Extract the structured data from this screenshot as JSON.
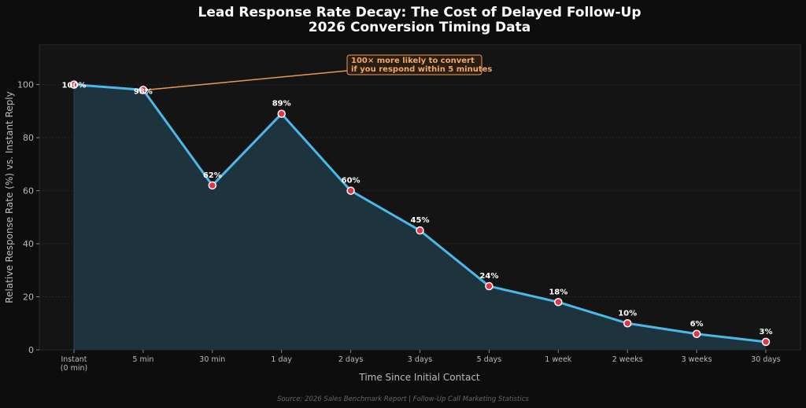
{
  "chart_data": {
    "type": "area",
    "title": "Lead Response Rate Decay: The Cost of Delayed Follow-Up",
    "subtitle": "2026 Conversion Timing Data",
    "xlabel": "Time Since Initial Contact",
    "ylabel": "Relative Response Rate (%) vs. Instant Reply",
    "categories": [
      [
        "Instant",
        "(0 min)"
      ],
      [
        "5 min"
      ],
      [
        "30 min"
      ],
      [
        "1 day"
      ],
      [
        "2 days"
      ],
      [
        "3 days"
      ],
      [
        "5 days"
      ],
      [
        "1 week"
      ],
      [
        "2 weeks"
      ],
      [
        "3 weeks"
      ],
      [
        "30 days"
      ]
    ],
    "values": [
      100,
      98,
      62,
      89,
      60,
      45,
      24,
      18,
      10,
      6,
      3
    ],
    "data_labels": [
      "100%",
      "98%",
      "62%",
      "89%",
      "60%",
      "45%",
      "24%",
      "18%",
      "10%",
      "6%",
      "3%"
    ],
    "ylim": [
      0,
      115
    ],
    "yticks": [
      0,
      20,
      40,
      60,
      80,
      100
    ],
    "grid": true,
    "annotation": {
      "lines": [
        "100× more likely to convert",
        "if you respond within 5 minutes"
      ],
      "target_index": 1
    },
    "source": "Source: 2026 Sales Benchmark Report | Follow-Up Call Marketing Statistics",
    "colors": {
      "line": "#4bb8e8",
      "fill": "#1f3a47",
      "marker": "#e0364a",
      "marker_edge": "#ffffff",
      "annotation": "#e59a5a",
      "plot_bg": "#141414",
      "grid": "#262626"
    }
  }
}
